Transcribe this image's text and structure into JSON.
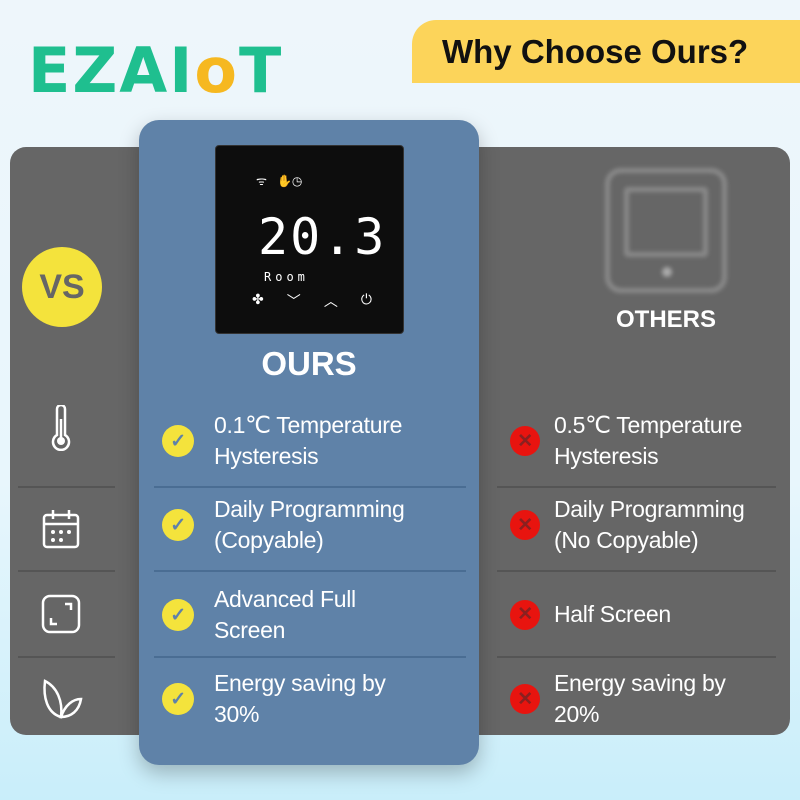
{
  "brand": {
    "logo": "EZAIoT"
  },
  "banner": {
    "title": "Why Choose Ours?"
  },
  "vs": "VS",
  "ours": {
    "title": "OURS",
    "device": {
      "temperature": "20.3",
      "label": "Room"
    }
  },
  "others": {
    "title": "OTHERS"
  },
  "features": [
    {
      "icon": "thermometer-icon",
      "ours": [
        "0.1℃ Temperature",
        "Hysteresis"
      ],
      "others": [
        "0.5℃ Temperature",
        "Hysteresis"
      ]
    },
    {
      "icon": "calendar-icon",
      "ours": [
        "Daily Programming",
        "(Copyable)"
      ],
      "others": [
        "Daily Programming",
        "(No Copyable)"
      ]
    },
    {
      "icon": "fullscreen-icon",
      "ours": [
        "Advanced Full",
        "Screen"
      ],
      "others": [
        "Half Screen"
      ]
    },
    {
      "icon": "leaf-icon",
      "ours": [
        "Energy saving by",
        "30%"
      ],
      "others": [
        "Energy saving by",
        "20%"
      ]
    }
  ],
  "colors": {
    "brand": "#1fbf8f",
    "banner": "#fcd45a",
    "ours_panel": "#5f82a8",
    "others_panel": "#666666",
    "check": "#f4e33c",
    "cross": "#e8140f"
  }
}
